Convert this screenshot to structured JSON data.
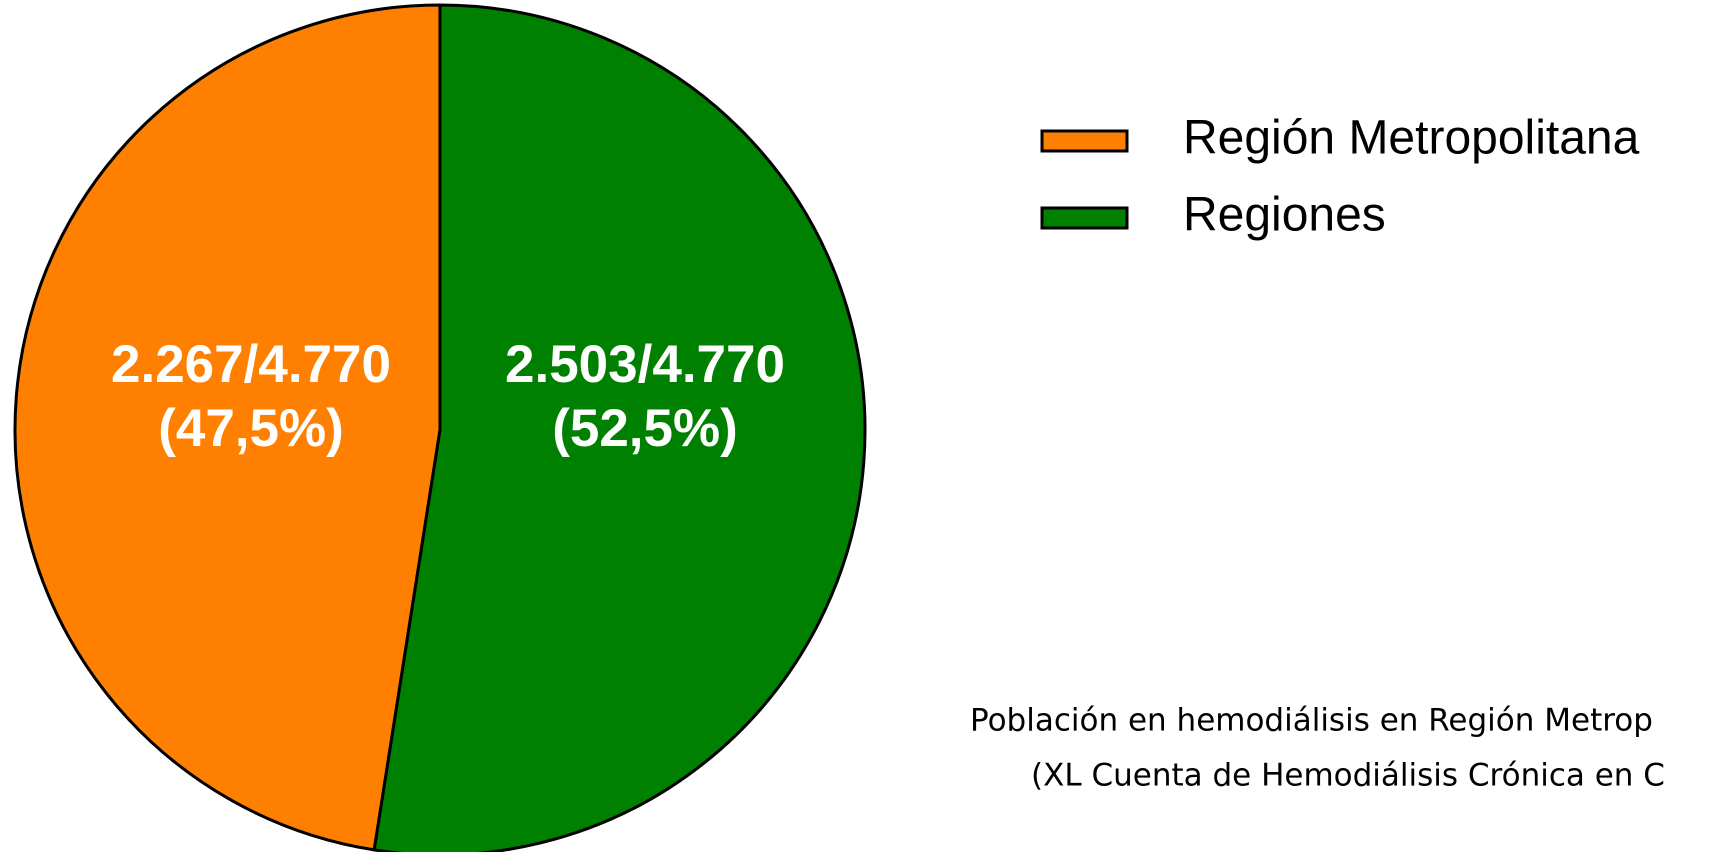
{
  "chart_data": {
    "type": "pie",
    "categories": [
      "Región Metropolitana",
      "Regiones"
    ],
    "values": [
      2267,
      2503
    ],
    "value_labels": [
      "2.267/4.770",
      "2.503/4.770"
    ],
    "percent_labels": [
      "(47,5%)",
      "(52,5%)"
    ],
    "colors": [
      "#ff8000",
      "#008000"
    ],
    "legend": "top-right",
    "caption": [
      "Población en hemodiálisis en Región Metrop",
      "(XL Cuenta de Hemodiálisis Crónica en C"
    ]
  }
}
